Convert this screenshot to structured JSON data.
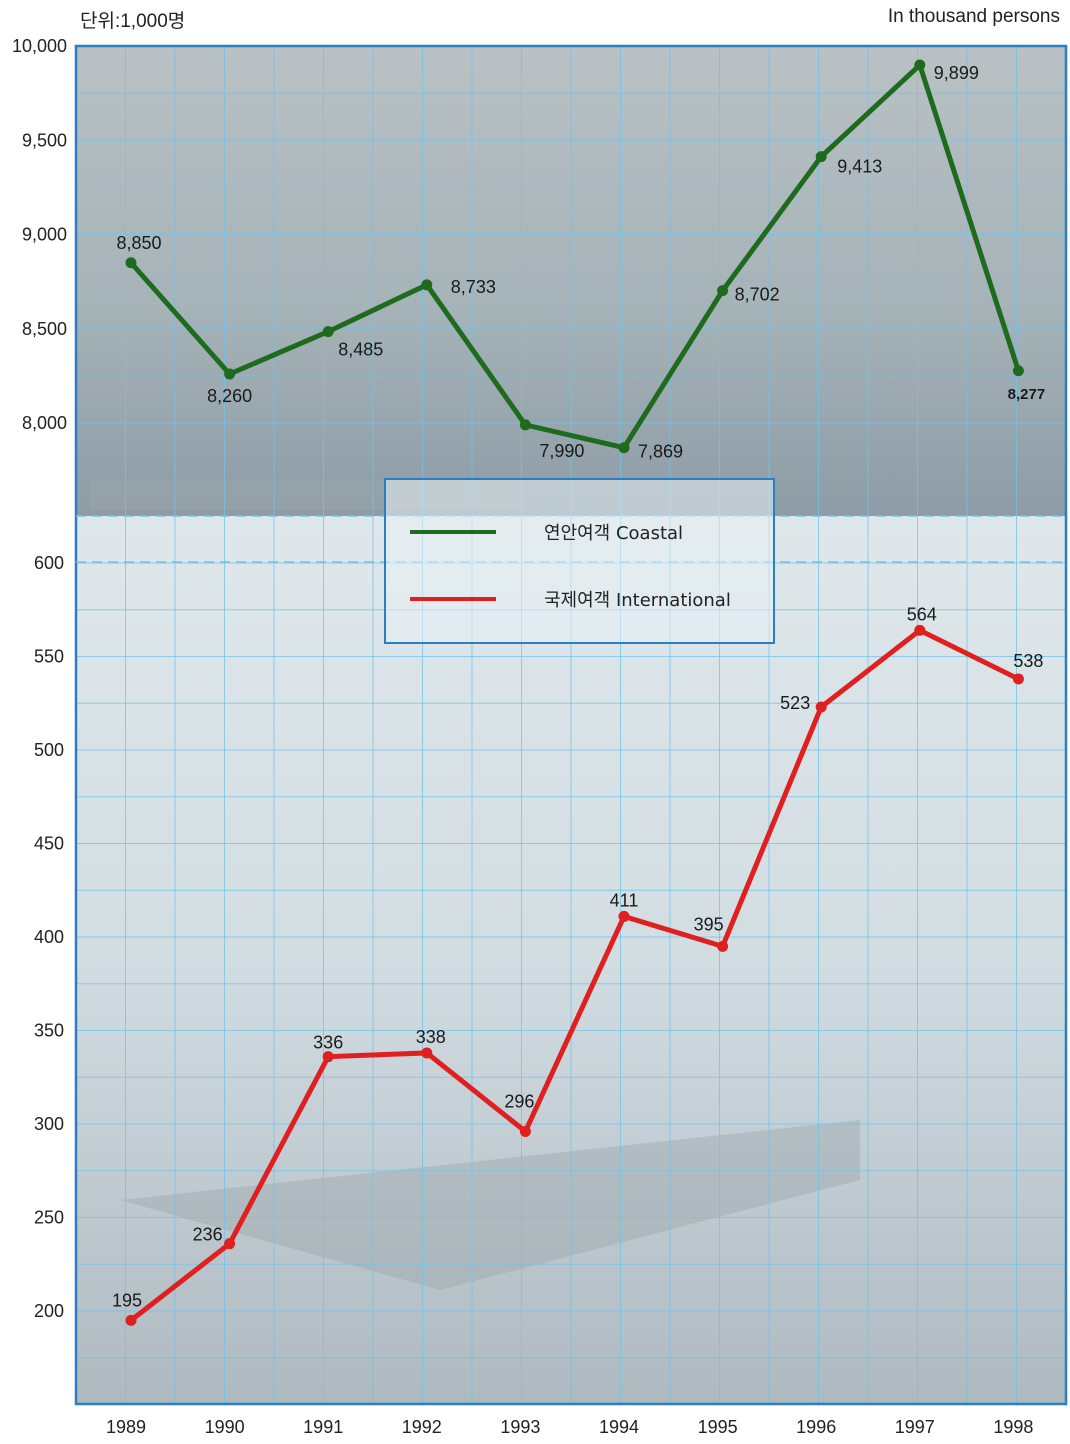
{
  "header": {
    "unit_ko": "단위:1,000명",
    "unit_en": "In thousand persons"
  },
  "colors": {
    "coastal": "#1e6b1e",
    "international": "#e02020",
    "frame": "#2a7fc4",
    "grid": "#6fc3ec"
  },
  "legend": {
    "coastal_label": "연안여객 Coastal",
    "international_label": "국제여객 International"
  },
  "chart_data": {
    "type": "line",
    "categories": [
      "1989",
      "1990",
      "1991",
      "1992",
      "1993",
      "1994",
      "1995",
      "1996",
      "1997",
      "1998"
    ],
    "broken_y_axis": true,
    "y_ticks_upper": [
      "10,000",
      "9,500",
      "9,000",
      "8,500",
      "8,000"
    ],
    "y_ticks_lower": [
      "600",
      "550",
      "500",
      "450",
      "400",
      "350",
      "300",
      "250",
      "200"
    ],
    "ylim_upper": [
      7750,
      10000
    ],
    "ylim_lower": [
      175,
      600
    ],
    "grid": true,
    "series": [
      {
        "name": "연안여객 Coastal",
        "panel": "upper",
        "values": [
          8850,
          8260,
          8485,
          8733,
          7990,
          7869,
          8702,
          9413,
          9899,
          8277
        ],
        "labels": [
          "8,850",
          "8,260",
          "8,485",
          "8,733",
          "7,990",
          "7,869",
          "8,702",
          "9,413",
          "9,899",
          "8,277"
        ]
      },
      {
        "name": "국제여객 International",
        "panel": "lower",
        "values": [
          195,
          236,
          336,
          338,
          296,
          411,
          395,
          523,
          564,
          538
        ],
        "labels": [
          "195",
          "236",
          "336",
          "338",
          "296",
          "411",
          "395",
          "523",
          "564",
          "538"
        ]
      }
    ]
  }
}
